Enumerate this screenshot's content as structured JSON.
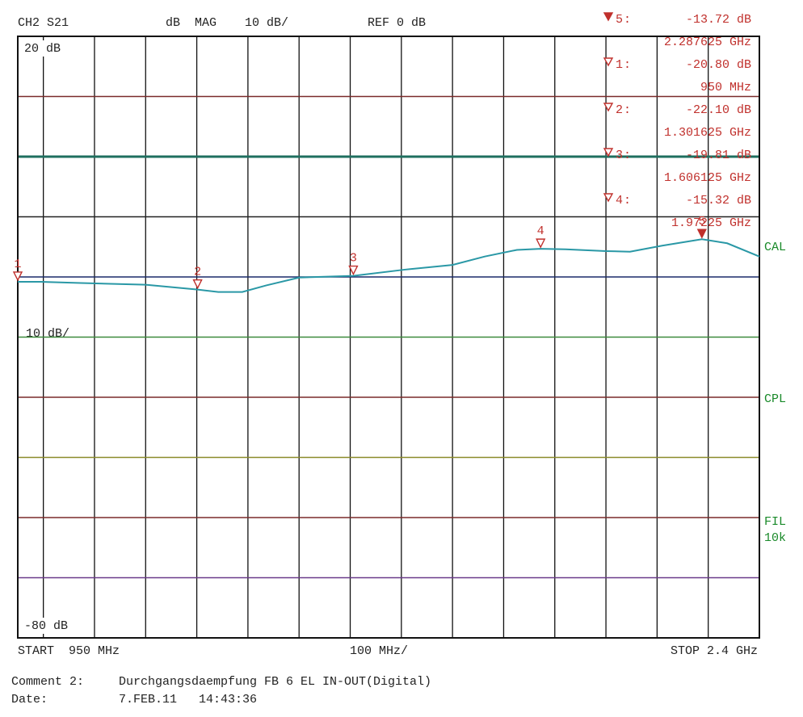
{
  "chart_data": {
    "type": "line",
    "channel": "CH2 S21",
    "format": "dB  MAG",
    "scale_label": "10 dB/",
    "ref": {
      "value": 0,
      "label": "REF 0 dB"
    },
    "start_label": "START  950 MHz",
    "span_label": "100 MHz/",
    "stop_label": "STOP 2.4 GHz",
    "side_labels": [
      "CAL",
      "CPL",
      "FIL",
      "10k"
    ],
    "xlim": [
      950,
      2400
    ],
    "ylim": [
      -80,
      20
    ],
    "xticks": [
      1000,
      1100,
      1200,
      1300,
      1400,
      1500,
      1600,
      1700,
      1800,
      1900,
      2000,
      2100,
      2200,
      2300
    ],
    "yticks": [
      {
        "value": 20,
        "label": "20 dB"
      },
      10,
      0,
      -10,
      -20,
      -30,
      -40,
      -50,
      -60,
      -70,
      {
        "value": -80,
        "label": "-80 dB"
      }
    ],
    "ygrid_colors": [
      "#000000",
      "#7a2a2a",
      "#1f6f5f",
      "#222222",
      "#1a2a6a",
      "#3c8a3c",
      "#7a2a2a",
      "#8a8a2a",
      "#7a2a2a",
      "#6a3a8a",
      "#000000"
    ],
    "series": [
      {
        "name": "S21",
        "color": "#2a98a6",
        "x": [
          950,
          994,
          1073,
          1200,
          1301.625,
          1342,
          1389,
          1436,
          1500,
          1606.125,
          1705,
          1800,
          1863,
          1926,
          1972.25,
          2021,
          2100,
          2147,
          2210,
          2287.625,
          2337,
          2400
        ],
        "values": [
          -20.8,
          -20.8,
          -21.0,
          -21.3,
          -22.1,
          -22.5,
          -22.5,
          -21.4,
          -20.1,
          -19.81,
          -18.8,
          -18.0,
          -16.6,
          -15.5,
          -15.32,
          -15.4,
          -15.7,
          -15.8,
          -14.8,
          -13.72,
          -14.4,
          -16.6
        ]
      }
    ],
    "markers": [
      {
        "label": "5",
        "active": true,
        "x": 2287.625,
        "x_label": "2.287625 GHz",
        "value": -13.72,
        "value_label": "-13.72 dB"
      },
      {
        "label": "1",
        "active": false,
        "x": 950,
        "x_label": "950 MHz",
        "value": -20.8,
        "value_label": "-20.80 dB"
      },
      {
        "label": "2",
        "active": false,
        "x": 1301.625,
        "x_label": "1.301625 GHz",
        "value": -22.1,
        "value_label": "-22.10 dB"
      },
      {
        "label": "3",
        "active": false,
        "x": 1606.125,
        "x_label": "1.606125 GHz",
        "value": -19.81,
        "value_label": "-19.81 dB"
      },
      {
        "label": "4",
        "active": false,
        "x": 1972.25,
        "x_label": "1.97225 GHz",
        "value": -15.32,
        "value_label": "-15.32 dB"
      }
    ],
    "marker_color": "#c0302c",
    "comment_key": "Comment 2:",
    "comment": "Durchgangsdaempfung FB 6 EL IN-OUT(Digital)",
    "date_key": "Date:",
    "date": "7.FEB.11   14:43:36"
  }
}
